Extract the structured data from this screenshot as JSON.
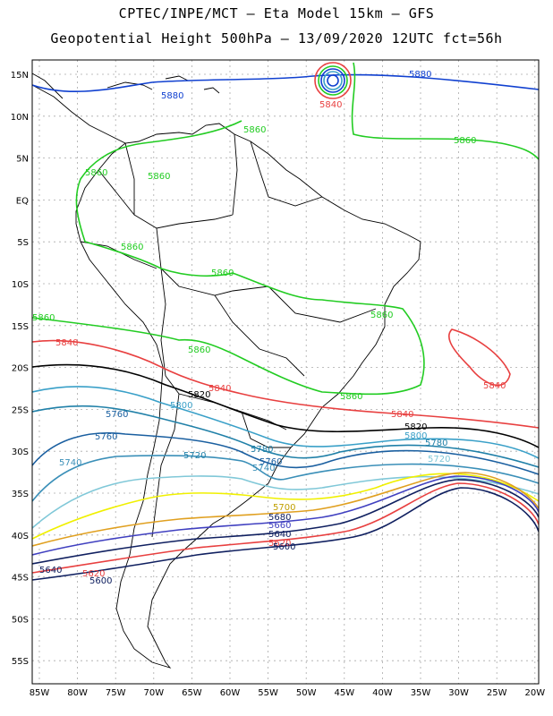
{
  "title_line1": "CPTEC/INPE/MCT –  Eta Model 15km – GFS",
  "title_line2": "Geopotential Height 500hPa – 13/09/2020 12UTC fct=56h",
  "lat_labels": [
    "15N",
    "10N",
    "5N",
    "EQ",
    "5S",
    "10S",
    "15S",
    "20S",
    "25S",
    "30S",
    "35S",
    "40S",
    "45S",
    "50S",
    "55S"
  ],
  "lon_labels": [
    "85W",
    "80W",
    "75W",
    "70W",
    "65W",
    "60W",
    "55W",
    "50W",
    "45W",
    "40W",
    "35W",
    "30W",
    "25W",
    "20W"
  ],
  "colors": {
    "c5860": "#22cc22",
    "c5840": "#e84040",
    "c5820": "#000000",
    "c5800": "#3aa0c8",
    "c5780": "#2080a8",
    "c5760": "#1a5fa0",
    "c5740": "#3a8fb8",
    "c5720": "#80c8d8",
    "c5700": "#f0f000",
    "c5680": "#e0a020",
    "c5660": "#4040c0",
    "cblue": "#1040d0",
    "grid": "#aaaaaa"
  },
  "contour_labels": {
    "l5880a": "5880",
    "l5860a": "5860",
    "l5840a": "5840",
    "l5860b": "5860",
    "l5860c": "5860",
    "l5860d": "5860",
    "l5860e": "5860",
    "l5860f": "5860",
    "l5860g": "5860",
    "l5860h": "5860",
    "l5860i": "5860",
    "l5860j": "5860",
    "l5860k": "5860",
    "l5840b": "5840",
    "l5840c": "5840",
    "l5840d": "5840",
    "l5840e": "5840",
    "l5820a": "5820",
    "l5820b": "5820",
    "l5800a": "5800",
    "l5800b": "5800",
    "l5780a": "5780",
    "l5780b": "5780",
    "l5760a": "5760",
    "l5760b": "5760",
    "l5760c": "5760",
    "l5740a": "5740",
    "l5740b": "5740",
    "l5720a": "5720",
    "l5720b": "5720",
    "l5700a": "5700",
    "l5680a": "5680",
    "l5660a": "5660",
    "l5640a": "5640",
    "l5640b": "5640",
    "l5620a": "5620",
    "l5600a": "5600",
    "l5600b": "5600",
    "l5880b": "5880"
  }
}
